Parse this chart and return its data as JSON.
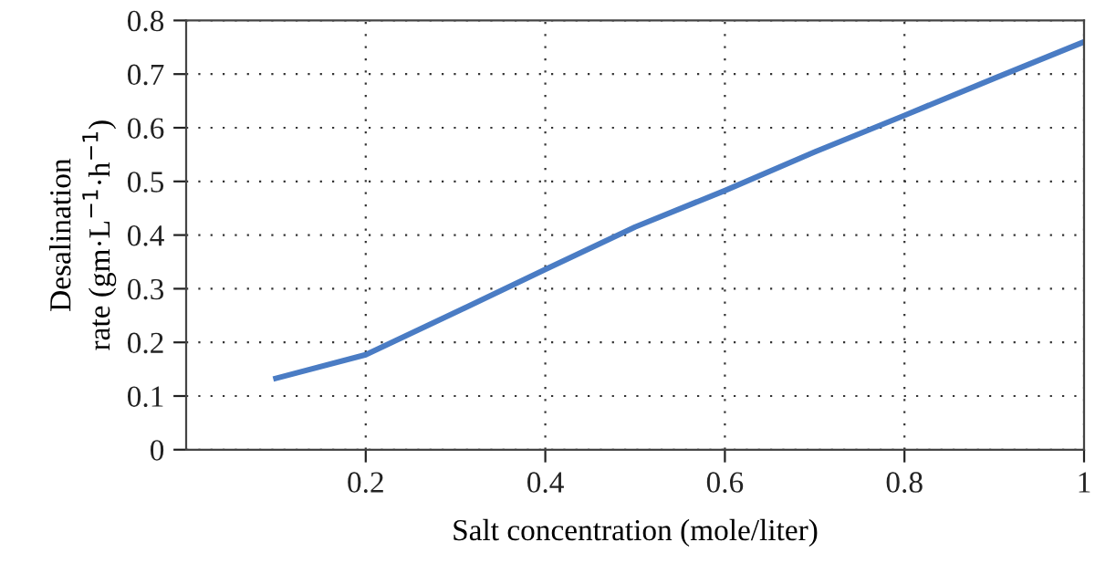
{
  "chart_data": {
    "type": "line",
    "xlabel": "Salt concentration (mole/liter)",
    "ylabel": "Desalination\nrate (gm·L$^{−1}$·h$^{−1}$)",
    "x": [
      0.1,
      0.2,
      0.3,
      0.4,
      0.5,
      0.6,
      0.7,
      0.8,
      0.9,
      1.0
    ],
    "series": [
      {
        "color": "#4a7cc4",
        "values": [
          0.133,
          0.177,
          0.256,
          0.336,
          0.415,
          0.483,
          0.555,
          0.623,
          0.692,
          0.76
        ]
      }
    ],
    "xlim": [
      0,
      1
    ],
    "xticks": [
      0.2,
      0.4,
      0.6,
      0.8,
      1
    ],
    "ylim": [
      0,
      0.8
    ],
    "yticks": [
      0,
      0.1,
      0.2,
      0.3,
      0.4,
      0.5,
      0.6,
      0.7,
      0.8
    ],
    "grid": true,
    "marker": "none",
    "line_style": "solid"
  }
}
